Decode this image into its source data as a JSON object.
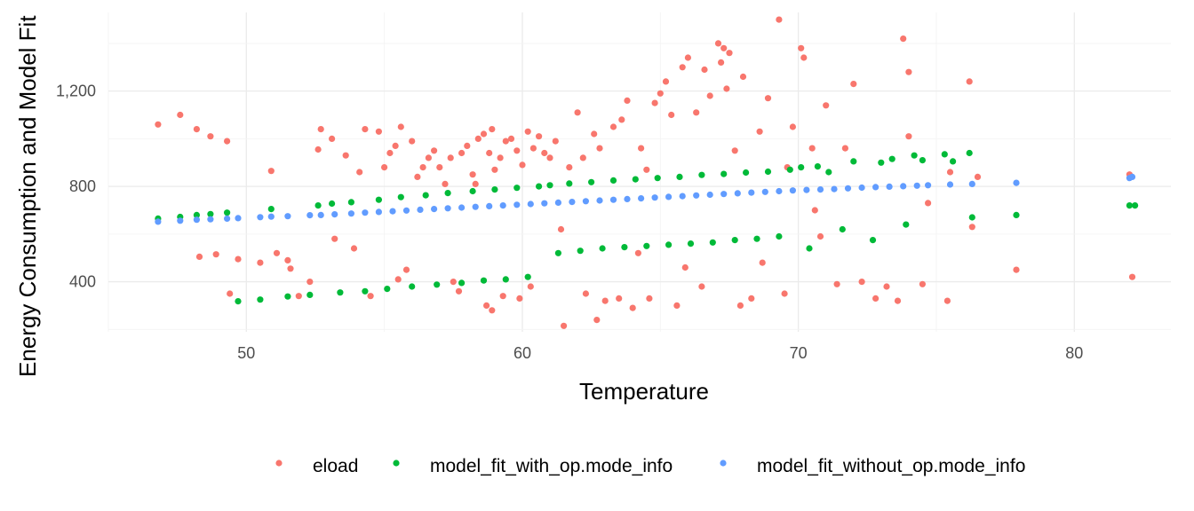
{
  "chart_data": {
    "type": "scatter",
    "title": "",
    "xlabel": "Temperature",
    "ylabel": "Energy Consumption and Model Fit",
    "xlim": [
      45,
      83.5
    ],
    "ylim": [
      190,
      1530
    ],
    "x_ticks": [
      50,
      60,
      70,
      80
    ],
    "y_ticks": [
      400,
      800,
      1200
    ],
    "y_tick_labels": [
      "400",
      "800",
      "1,200"
    ],
    "grid": true,
    "legend_position": "bottom",
    "series": [
      {
        "name": "eload",
        "color": "#F8766D",
        "points": [
          [
            46.8,
            1060
          ],
          [
            47.6,
            1100
          ],
          [
            48.2,
            1040
          ],
          [
            48.7,
            1010
          ],
          [
            49.3,
            990
          ],
          [
            48.3,
            505
          ],
          [
            48.9,
            515
          ],
          [
            49.4,
            350
          ],
          [
            49.7,
            495
          ],
          [
            50.5,
            480
          ],
          [
            50.9,
            865
          ],
          [
            51.1,
            520
          ],
          [
            51.5,
            490
          ],
          [
            51.6,
            455
          ],
          [
            51.9,
            340
          ],
          [
            52.3,
            400
          ],
          [
            52.6,
            955
          ],
          [
            52.7,
            1040
          ],
          [
            53.1,
            1000
          ],
          [
            53.2,
            580
          ],
          [
            53.6,
            930
          ],
          [
            53.9,
            540
          ],
          [
            54.1,
            860
          ],
          [
            54.3,
            1040
          ],
          [
            54.5,
            340
          ],
          [
            54.8,
            1030
          ],
          [
            55.0,
            880
          ],
          [
            55.2,
            940
          ],
          [
            55.4,
            970
          ],
          [
            55.6,
            1050
          ],
          [
            55.5,
            410
          ],
          [
            55.8,
            450
          ],
          [
            56.0,
            990
          ],
          [
            56.2,
            840
          ],
          [
            56.4,
            880
          ],
          [
            56.6,
            920
          ],
          [
            56.8,
            950
          ],
          [
            57.0,
            880
          ],
          [
            57.2,
            810
          ],
          [
            57.4,
            920
          ],
          [
            57.5,
            400
          ],
          [
            57.7,
            360
          ],
          [
            57.8,
            940
          ],
          [
            58.0,
            970
          ],
          [
            58.2,
            850
          ],
          [
            58.3,
            810
          ],
          [
            58.4,
            1000
          ],
          [
            58.6,
            1020
          ],
          [
            58.8,
            940
          ],
          [
            58.9,
            1040
          ],
          [
            58.7,
            300
          ],
          [
            58.9,
            280
          ],
          [
            59.0,
            870
          ],
          [
            59.2,
            920
          ],
          [
            59.4,
            990
          ],
          [
            59.3,
            340
          ],
          [
            59.6,
            1000
          ],
          [
            59.8,
            950
          ],
          [
            60.0,
            890
          ],
          [
            60.2,
            1030
          ],
          [
            59.9,
            330
          ],
          [
            60.3,
            380
          ],
          [
            60.4,
            960
          ],
          [
            60.6,
            1010
          ],
          [
            60.8,
            940
          ],
          [
            61.0,
            920
          ],
          [
            61.2,
            990
          ],
          [
            61.4,
            620
          ],
          [
            61.5,
            215
          ],
          [
            61.7,
            880
          ],
          [
            62.0,
            1110
          ],
          [
            62.2,
            920
          ],
          [
            62.3,
            350
          ],
          [
            62.6,
            1020
          ],
          [
            62.8,
            960
          ],
          [
            63.0,
            320
          ],
          [
            63.3,
            1050
          ],
          [
            63.6,
            1080
          ],
          [
            63.8,
            1160
          ],
          [
            64.0,
            290
          ],
          [
            64.3,
            960
          ],
          [
            64.5,
            870
          ],
          [
            64.6,
            330
          ],
          [
            64.8,
            1150
          ],
          [
            65.0,
            1190
          ],
          [
            65.2,
            1240
          ],
          [
            65.4,
            1100
          ],
          [
            65.6,
            300
          ],
          [
            65.8,
            1300
          ],
          [
            66.0,
            1340
          ],
          [
            66.3,
            1110
          ],
          [
            66.6,
            1290
          ],
          [
            66.8,
            1180
          ],
          [
            67.1,
            1400
          ],
          [
            67.3,
            1380
          ],
          [
            67.5,
            1360
          ],
          [
            67.2,
            1320
          ],
          [
            67.4,
            1210
          ],
          [
            67.7,
            950
          ],
          [
            68.0,
            1260
          ],
          [
            68.3,
            330
          ],
          [
            68.6,
            1030
          ],
          [
            68.9,
            1170
          ],
          [
            69.3,
            1500
          ],
          [
            69.6,
            880
          ],
          [
            69.8,
            1050
          ],
          [
            70.1,
            1380
          ],
          [
            70.2,
            1340
          ],
          [
            70.5,
            960
          ],
          [
            70.8,
            590
          ],
          [
            71.0,
            1140
          ],
          [
            71.4,
            390
          ],
          [
            71.7,
            960
          ],
          [
            72.0,
            1230
          ],
          [
            72.3,
            400
          ],
          [
            72.8,
            330
          ],
          [
            73.2,
            380
          ],
          [
            73.6,
            320
          ],
          [
            73.8,
            1420
          ],
          [
            74.0,
            1280
          ],
          [
            74.0,
            1010
          ],
          [
            74.5,
            390
          ],
          [
            74.7,
            730
          ],
          [
            75.4,
            320
          ],
          [
            75.5,
            860
          ],
          [
            76.2,
            1240
          ],
          [
            76.3,
            630
          ],
          [
            76.5,
            840
          ],
          [
            77.9,
            450
          ],
          [
            82.0,
            850
          ],
          [
            82.1,
            420
          ],
          [
            62.7,
            240
          ],
          [
            63.5,
            330
          ],
          [
            64.2,
            520
          ],
          [
            65.9,
            460
          ],
          [
            66.5,
            380
          ],
          [
            67.9,
            300
          ],
          [
            68.7,
            480
          ],
          [
            69.5,
            350
          ],
          [
            70.6,
            700
          ]
        ]
      },
      {
        "name": "model_fit_with_op.mode_info",
        "color": "#00BA38",
        "points": [
          [
            46.8,
            665
          ],
          [
            47.6,
            672
          ],
          [
            48.2,
            680
          ],
          [
            48.7,
            684
          ],
          [
            49.3,
            690
          ],
          [
            49.7,
            318
          ],
          [
            50.5,
            325
          ],
          [
            50.9,
            705
          ],
          [
            51.5,
            338
          ],
          [
            52.3,
            345
          ],
          [
            52.6,
            720
          ],
          [
            53.1,
            728
          ],
          [
            53.4,
            355
          ],
          [
            53.8,
            734
          ],
          [
            54.3,
            360
          ],
          [
            54.8,
            744
          ],
          [
            55.1,
            370
          ],
          [
            55.6,
            755
          ],
          [
            56.0,
            380
          ],
          [
            56.5,
            763
          ],
          [
            56.9,
            388
          ],
          [
            57.3,
            772
          ],
          [
            57.8,
            395
          ],
          [
            58.2,
            780
          ],
          [
            58.6,
            405
          ],
          [
            59.0,
            787
          ],
          [
            59.4,
            410
          ],
          [
            59.8,
            794
          ],
          [
            60.2,
            420
          ],
          [
            60.6,
            800
          ],
          [
            61.0,
            805
          ],
          [
            61.3,
            520
          ],
          [
            61.7,
            812
          ],
          [
            62.1,
            530
          ],
          [
            62.5,
            818
          ],
          [
            62.9,
            540
          ],
          [
            63.3,
            825
          ],
          [
            63.7,
            545
          ],
          [
            64.1,
            830
          ],
          [
            64.5,
            550
          ],
          [
            64.9,
            835
          ],
          [
            65.3,
            555
          ],
          [
            65.7,
            840
          ],
          [
            66.1,
            560
          ],
          [
            66.5,
            848
          ],
          [
            66.9,
            565
          ],
          [
            67.3,
            852
          ],
          [
            67.7,
            575
          ],
          [
            68.1,
            858
          ],
          [
            68.5,
            580
          ],
          [
            68.9,
            862
          ],
          [
            69.3,
            590
          ],
          [
            69.7,
            870
          ],
          [
            70.1,
            880
          ],
          [
            70.4,
            540
          ],
          [
            70.7,
            884
          ],
          [
            71.1,
            860
          ],
          [
            71.6,
            620
          ],
          [
            72.0,
            905
          ],
          [
            72.7,
            575
          ],
          [
            73.0,
            900
          ],
          [
            73.4,
            915
          ],
          [
            73.9,
            640
          ],
          [
            74.2,
            930
          ],
          [
            74.5,
            910
          ],
          [
            75.3,
            935
          ],
          [
            75.6,
            905
          ],
          [
            76.2,
            940
          ],
          [
            76.3,
            670
          ],
          [
            77.9,
            680
          ],
          [
            82.0,
            720
          ],
          [
            82.2,
            720
          ]
        ]
      },
      {
        "name": "model_fit_without_op.mode_info",
        "color": "#619CFF",
        "points": [
          [
            46.8,
            652
          ],
          [
            47.6,
            656
          ],
          [
            48.2,
            660
          ],
          [
            48.7,
            662
          ],
          [
            49.3,
            665
          ],
          [
            49.7,
            667
          ],
          [
            50.5,
            671
          ],
          [
            50.9,
            673
          ],
          [
            51.5,
            675
          ],
          [
            52.3,
            679
          ],
          [
            52.7,
            680
          ],
          [
            53.2,
            683
          ],
          [
            53.8,
            686
          ],
          [
            54.3,
            690
          ],
          [
            54.8,
            693
          ],
          [
            55.3,
            696
          ],
          [
            55.8,
            699
          ],
          [
            56.3,
            702
          ],
          [
            56.8,
            705
          ],
          [
            57.3,
            708
          ],
          [
            57.8,
            711
          ],
          [
            58.3,
            714
          ],
          [
            58.8,
            717
          ],
          [
            59.3,
            720
          ],
          [
            59.8,
            723
          ],
          [
            60.3,
            726
          ],
          [
            60.8,
            729
          ],
          [
            61.3,
            732
          ],
          [
            61.8,
            735
          ],
          [
            62.3,
            738
          ],
          [
            62.8,
            741
          ],
          [
            63.3,
            744
          ],
          [
            63.8,
            747
          ],
          [
            64.3,
            750
          ],
          [
            64.8,
            753
          ],
          [
            65.3,
            756
          ],
          [
            65.8,
            759
          ],
          [
            66.3,
            762
          ],
          [
            66.8,
            765
          ],
          [
            67.3,
            768
          ],
          [
            67.8,
            771
          ],
          [
            68.3,
            774
          ],
          [
            68.8,
            777
          ],
          [
            69.3,
            780
          ],
          [
            69.8,
            783
          ],
          [
            70.3,
            785
          ],
          [
            70.8,
            787
          ],
          [
            71.3,
            789
          ],
          [
            71.8,
            792
          ],
          [
            72.3,
            795
          ],
          [
            72.8,
            797
          ],
          [
            73.3,
            799
          ],
          [
            73.8,
            801
          ],
          [
            74.3,
            803
          ],
          [
            74.7,
            805
          ],
          [
            75.5,
            808
          ],
          [
            76.3,
            810
          ],
          [
            77.9,
            815
          ],
          [
            82.0,
            835
          ],
          [
            82.1,
            840
          ]
        ]
      }
    ]
  }
}
